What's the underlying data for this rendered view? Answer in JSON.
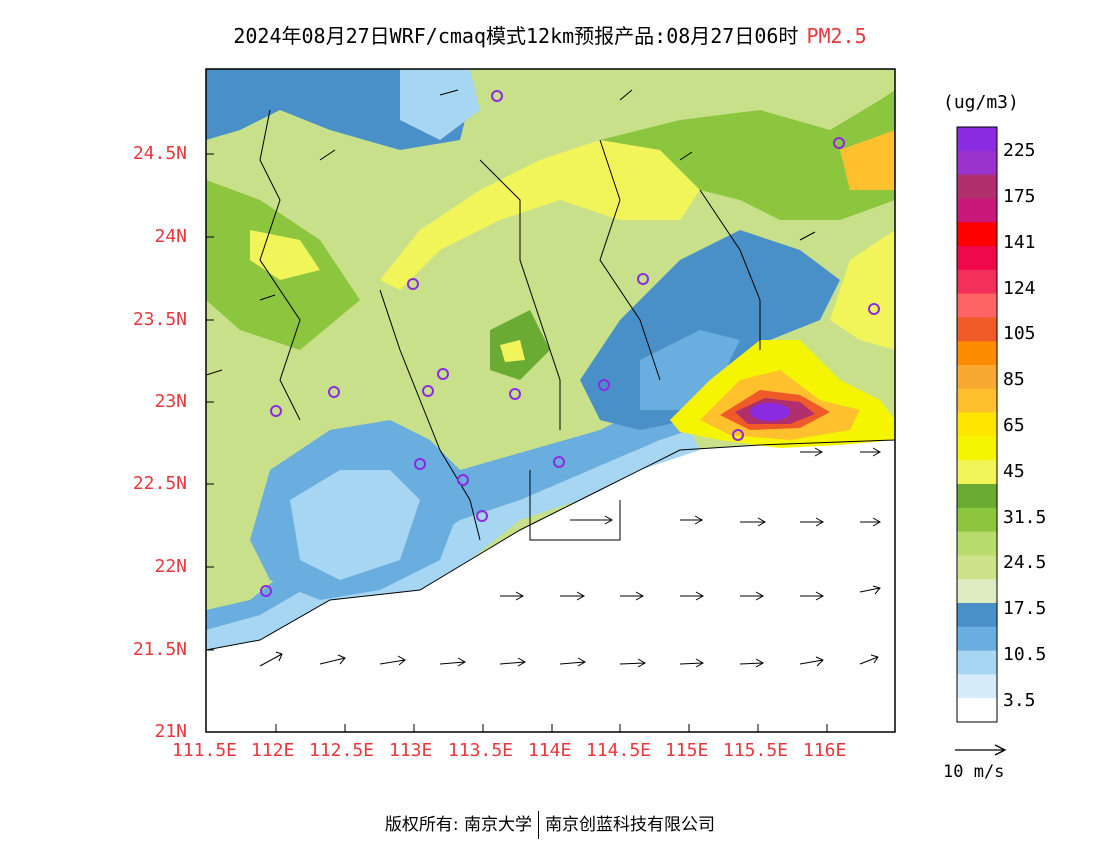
{
  "title": {
    "main": "2024年08月27日WRF/cmaq模式12km预报产品:08月27日06时",
    "variable": "PM2.5"
  },
  "axes": {
    "lat_labels": [
      "24.5N",
      "24N",
      "23.5N",
      "23N",
      "22.5N",
      "22N",
      "21.5N",
      "21N"
    ],
    "lon_labels": [
      "111.5E",
      "112E",
      "112.5E",
      "113E",
      "113.5E",
      "114E",
      "114.5E",
      "115E",
      "115.5E",
      "116E"
    ]
  },
  "colorbar": {
    "units": "(ug/m3)",
    "labels": [
      "225",
      "175",
      "141",
      "124",
      "105",
      "85",
      "65",
      "45",
      "31.5",
      "24.5",
      "17.5",
      "10.5",
      "3.5"
    ],
    "colors": [
      "#8b2be2",
      "#9a32cd",
      "#b0306e",
      "#c8187a",
      "#ff0000",
      "#f0094a",
      "#f2305a",
      "#ff6464",
      "#f05a28",
      "#ff8c00",
      "#f7a831",
      "#ffc02e",
      "#ffe600",
      "#f5f500",
      "#f2f55a",
      "#6aab33",
      "#8cc63f",
      "#b8dc6e",
      "#cde38a",
      "#dfecc1",
      "#4a90c8",
      "#6aaedf",
      "#a6d6f2",
      "#d6ecf8",
      "#ffffff"
    ]
  },
  "wind_reference": {
    "label": "10 m/s"
  },
  "footer": {
    "left": "版权所有: 南京大学",
    "right": "南京创蓝科技有限公司"
  }
}
